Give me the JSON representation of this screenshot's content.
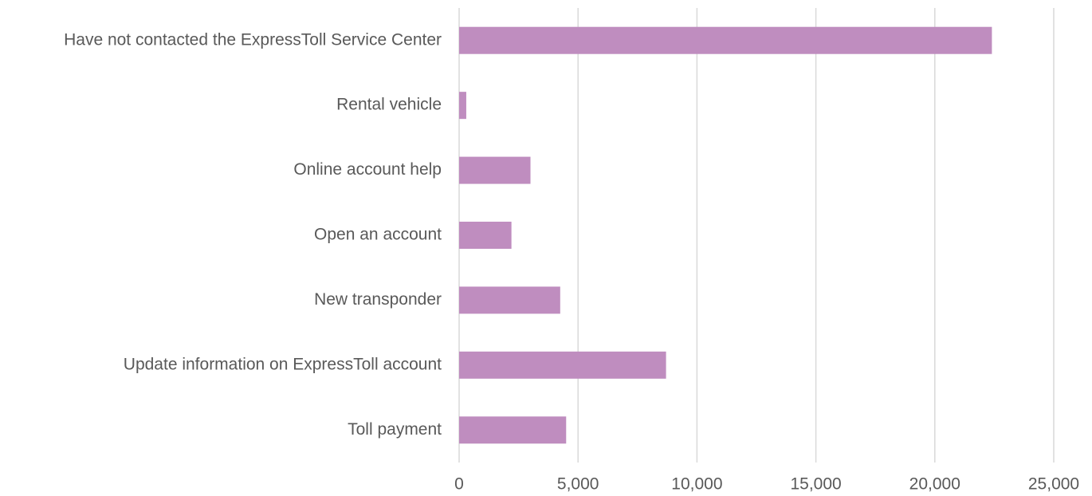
{
  "chart_data": {
    "type": "bar",
    "orientation": "horizontal",
    "categories": [
      "Have not contacted the ExpressToll Service Center",
      "Rental vehicle",
      "Online account help",
      "Open an account",
      "New transponder",
      "Update information on ExpressToll account",
      "Toll payment"
    ],
    "values": [
      22400,
      300,
      3000,
      2200,
      4250,
      8700,
      4500
    ],
    "color": "#bf8dbf",
    "xlim": [
      0,
      25000
    ],
    "xticks": [
      0,
      {
        "value": 5000,
        "label": "5,000"
      },
      {
        "value": 10000,
        "label": "10,000"
      },
      {
        "value": 15000,
        "label": "15,000"
      },
      {
        "value": 20000,
        "label": "20,000"
      },
      {
        "value": 25000,
        "label": "25,000"
      }
    ],
    "grid": true
  }
}
